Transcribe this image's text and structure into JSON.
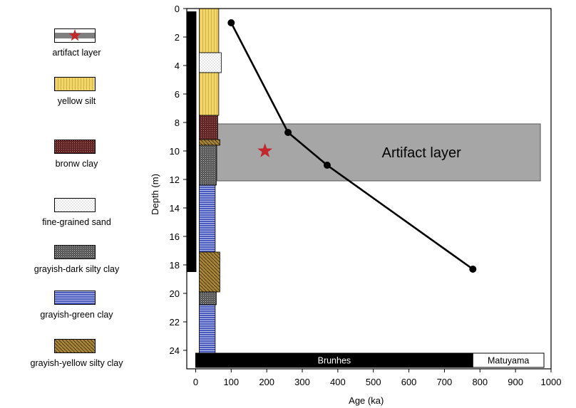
{
  "legend": {
    "items": [
      {
        "label": "artifact layer",
        "pattern": "artifact",
        "color": "#7f7f7f"
      },
      {
        "label": "yellow silt",
        "pattern": "yellow-silt",
        "color": "#f2d56a"
      },
      {
        "label": "bronw clay",
        "pattern": "brown-clay",
        "color": "#5a2020"
      },
      {
        "label": "fine-grained sand",
        "pattern": "fine-sand",
        "color": "#ffffff"
      },
      {
        "label": "grayish-dark silty clay",
        "pattern": "dark-silty-clay",
        "color": "#555555"
      },
      {
        "label": "grayish-green clay",
        "pattern": "green-clay",
        "color": "#4a5bbd"
      },
      {
        "label": "grayish-yellow silty clay",
        "pattern": "yellow-silty-clay",
        "color": "#a88636"
      }
    ]
  },
  "chart_data": {
    "type": "line",
    "title": "",
    "xlabel": "Age (ka)",
    "ylabel": "Depth (m)",
    "xlim": [
      0,
      1000
    ],
    "ylim": [
      25.3,
      0
    ],
    "xticks": [
      0,
      100,
      200,
      300,
      400,
      500,
      600,
      700,
      800,
      900,
      1000
    ],
    "yticks": [
      0,
      2,
      4,
      6,
      8,
      10,
      12,
      14,
      16,
      18,
      20,
      22,
      24
    ],
    "grid": false,
    "series": [
      {
        "x": [
          100,
          260,
          370,
          780
        ],
        "y": [
          1,
          8.7,
          11,
          18.3
        ],
        "color": "#000000"
      }
    ],
    "artifact_band": {
      "label": "Artifact layer",
      "x_range": [
        60,
        970
      ],
      "depth_range": [
        8.1,
        12.1
      ],
      "color": "#a6a6a6"
    },
    "star_marker": {
      "x": 195,
      "y": 10,
      "color": "#c1272d"
    },
    "polarity": [
      {
        "label": "Brunhes",
        "age_range": [
          0,
          780
        ],
        "fill": "#000000",
        "text_color": "#ffffff"
      },
      {
        "label": "Matuyama",
        "age_range": [
          780,
          980
        ],
        "fill": "#ffffff",
        "text_color": "#000000"
      }
    ],
    "core_column": {
      "age_range": [
        -25,
        2
      ],
      "depth_range": [
        0.2,
        18.5
      ],
      "color": "#000000"
    },
    "strata": [
      {
        "top": 0.0,
        "bottom": 3.1,
        "pattern": "yellow-silt",
        "xr": 65
      },
      {
        "top": 3.1,
        "bottom": 4.5,
        "pattern": "fine-sand",
        "xr": 72
      },
      {
        "top": 4.5,
        "bottom": 7.5,
        "pattern": "yellow-silt",
        "xr": 65
      },
      {
        "top": 7.5,
        "bottom": 9.2,
        "pattern": "brown-clay",
        "xr": 62
      },
      {
        "top": 9.2,
        "bottom": 9.6,
        "pattern": "yellow-silty-clay",
        "xr": 68
      },
      {
        "top": 9.6,
        "bottom": 12.4,
        "pattern": "dark-silty-clay",
        "xr": 58
      },
      {
        "top": 12.4,
        "bottom": 17.1,
        "pattern": "green-clay",
        "xr": 55
      },
      {
        "top": 17.1,
        "bottom": 19.9,
        "pattern": "yellow-silty-clay",
        "xr": 68
      },
      {
        "top": 19.9,
        "bottom": 20.8,
        "pattern": "dark-silty-clay",
        "xr": 58
      },
      {
        "top": 20.8,
        "bottom": 24.2,
        "pattern": "green-clay",
        "xr": 55
      }
    ]
  }
}
